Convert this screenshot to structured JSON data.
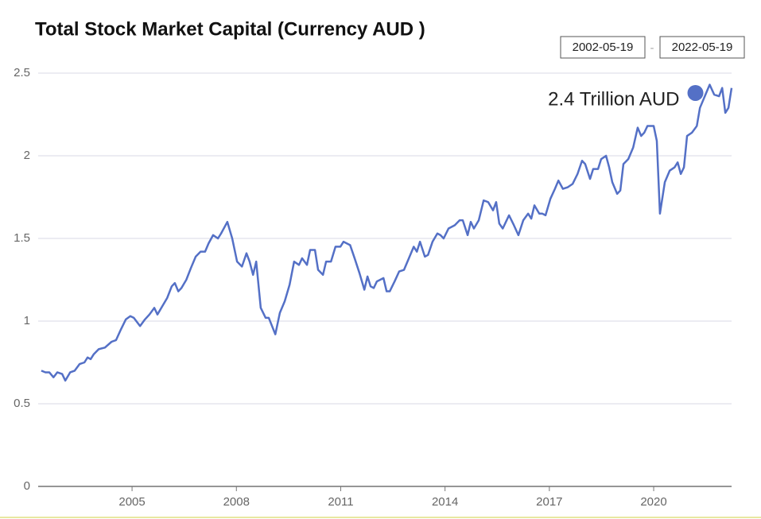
{
  "chart_data": {
    "type": "line",
    "title": "Total Stock Market Capital (Currency AUD )",
    "date_range": {
      "start": "2002-05-19",
      "separator": "-",
      "end": "2022-05-19"
    },
    "annotation": {
      "text": "2.4 Trillion AUD",
      "x": 2021.2,
      "y": 2.38
    },
    "xlim": [
      2002.3,
      2022.24
    ],
    "xticks": [
      2005,
      2008,
      2011,
      2014,
      2017,
      2020
    ],
    "ylim": [
      0,
      2.5
    ],
    "yticks": [
      0,
      0.5,
      1,
      1.5,
      2,
      2.5
    ],
    "grid": true,
    "series": [
      {
        "name": "Total Stock Market Capital",
        "color": "#5470c6",
        "x": [
          2002.39,
          2002.51,
          2002.62,
          2002.74,
          2002.85,
          2002.99,
          2003.08,
          2003.22,
          2003.35,
          2003.49,
          2003.63,
          2003.72,
          2003.81,
          2003.9,
          2004.04,
          2004.22,
          2004.41,
          2004.54,
          2004.68,
          2004.82,
          2004.95,
          2005.05,
          2005.23,
          2005.37,
          2005.5,
          2005.64,
          2005.73,
          2005.87,
          2006.01,
          2006.14,
          2006.23,
          2006.33,
          2006.42,
          2006.56,
          2006.69,
          2006.83,
          2006.97,
          2007.1,
          2007.2,
          2007.33,
          2007.47,
          2007.56,
          2007.74,
          2007.88,
          2008.02,
          2008.16,
          2008.29,
          2008.38,
          2008.48,
          2008.57,
          2008.7,
          2008.84,
          2008.93,
          2009.12,
          2009.25,
          2009.39,
          2009.53,
          2009.66,
          2009.8,
          2009.89,
          2010.03,
          2010.12,
          2010.26,
          2010.35,
          2010.49,
          2010.58,
          2010.72,
          2010.85,
          2010.99,
          2011.08,
          2011.27,
          2011.4,
          2011.54,
          2011.68,
          2011.77,
          2011.86,
          2011.95,
          2012.04,
          2012.23,
          2012.32,
          2012.41,
          2012.55,
          2012.68,
          2012.82,
          2012.96,
          2013.1,
          2013.19,
          2013.28,
          2013.42,
          2013.51,
          2013.64,
          2013.78,
          2013.87,
          2013.96,
          2014.1,
          2014.28,
          2014.42,
          2014.51,
          2014.65,
          2014.74,
          2014.83,
          2014.97,
          2015.11,
          2015.24,
          2015.38,
          2015.47,
          2015.56,
          2015.66,
          2015.75,
          2015.84,
          2015.98,
          2016.11,
          2016.25,
          2016.39,
          2016.48,
          2016.57,
          2016.71,
          2016.8,
          2016.89,
          2017.03,
          2017.16,
          2017.26,
          2017.39,
          2017.53,
          2017.67,
          2017.81,
          2017.94,
          2018.03,
          2018.17,
          2018.26,
          2018.4,
          2018.49,
          2018.63,
          2018.72,
          2018.81,
          2018.95,
          2019.04,
          2019.13,
          2019.27,
          2019.41,
          2019.54,
          2019.64,
          2019.73,
          2019.82,
          2020.0,
          2020.09,
          2020.18,
          2020.32,
          2020.46,
          2020.6,
          2020.69,
          2020.78,
          2020.87,
          2020.96,
          2021.1,
          2021.24,
          2021.33,
          2021.47,
          2021.61,
          2021.74,
          2021.88,
          2021.97,
          2022.06,
          2022.15,
          2022.24
        ],
        "values": [
          0.7,
          0.69,
          0.69,
          0.66,
          0.69,
          0.68,
          0.64,
          0.69,
          0.7,
          0.74,
          0.75,
          0.78,
          0.77,
          0.8,
          0.83,
          0.84,
          0.875,
          0.885,
          0.95,
          1.01,
          1.03,
          1.02,
          0.97,
          1.01,
          1.04,
          1.08,
          1.04,
          1.09,
          1.14,
          1.21,
          1.23,
          1.18,
          1.2,
          1.25,
          1.32,
          1.39,
          1.42,
          1.42,
          1.47,
          1.52,
          1.5,
          1.53,
          1.6,
          1.5,
          1.36,
          1.33,
          1.41,
          1.36,
          1.28,
          1.36,
          1.08,
          1.02,
          1.02,
          0.92,
          1.05,
          1.12,
          1.22,
          1.36,
          1.34,
          1.38,
          1.34,
          1.43,
          1.43,
          1.31,
          1.28,
          1.36,
          1.36,
          1.45,
          1.45,
          1.48,
          1.46,
          1.38,
          1.29,
          1.19,
          1.27,
          1.21,
          1.2,
          1.24,
          1.26,
          1.18,
          1.18,
          1.24,
          1.3,
          1.31,
          1.38,
          1.45,
          1.42,
          1.48,
          1.39,
          1.4,
          1.48,
          1.53,
          1.52,
          1.5,
          1.56,
          1.58,
          1.61,
          1.61,
          1.52,
          1.6,
          1.56,
          1.61,
          1.73,
          1.72,
          1.67,
          1.72,
          1.59,
          1.56,
          1.6,
          1.64,
          1.58,
          1.52,
          1.61,
          1.65,
          1.62,
          1.7,
          1.65,
          1.65,
          1.64,
          1.74,
          1.8,
          1.85,
          1.8,
          1.81,
          1.83,
          1.89,
          1.97,
          1.95,
          1.86,
          1.92,
          1.92,
          1.98,
          2.0,
          1.93,
          1.84,
          1.77,
          1.79,
          1.95,
          1.98,
          2.05,
          2.17,
          2.12,
          2.14,
          2.18,
          2.18,
          2.09,
          1.65,
          1.84,
          1.91,
          1.93,
          1.96,
          1.89,
          1.93,
          2.12,
          2.14,
          2.18,
          2.29,
          2.36,
          2.43,
          2.37,
          2.36,
          2.41,
          2.26,
          2.29,
          2.41
        ]
      }
    ]
  }
}
